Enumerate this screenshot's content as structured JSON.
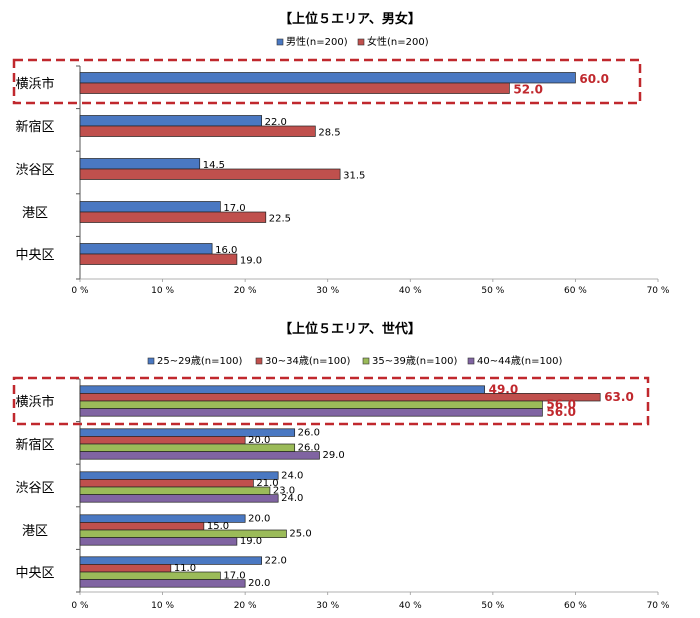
{
  "chart_data": [
    {
      "type": "bar",
      "orientation": "horizontal",
      "title": "【上位５エリア、男女】",
      "categories": [
        "横浜市",
        "新宿区",
        "渋谷区",
        "港区",
        "中央区"
      ],
      "series": [
        {
          "name": "男性(n=200)",
          "values": [
            60.0,
            22.0,
            14.5,
            17.0,
            16.0
          ],
          "labels": [
            "60.0",
            "22.0",
            "14.5",
            "17.0",
            "16.0"
          ]
        },
        {
          "name": "女性(n=200)",
          "values": [
            52.0,
            28.5,
            31.5,
            22.5,
            19.0
          ],
          "labels": [
            "52.0",
            "28.5",
            "31.5",
            "22.5",
            "19.0"
          ]
        }
      ],
      "xlim": [
        0,
        70
      ],
      "ticks": [
        "0 %",
        "10 %",
        "20 %",
        "30 %",
        "40 %",
        "50 %",
        "60 %",
        "70 %"
      ],
      "highlight_category": "横浜市",
      "legend_position": "top"
    },
    {
      "type": "bar",
      "orientation": "horizontal",
      "title": "【上位５エリア、世代】",
      "categories": [
        "横浜市",
        "新宿区",
        "渋谷区",
        "港区",
        "中央区"
      ],
      "series": [
        {
          "name": "25~29歳(n=100)",
          "values": [
            49.0,
            26.0,
            24.0,
            20.0,
            22.0
          ],
          "labels": [
            "49.0",
            "26.0",
            "24.0",
            "20.0",
            "22.0"
          ]
        },
        {
          "name": "30~34歳(n=100)",
          "values": [
            63.0,
            20.0,
            21.0,
            15.0,
            11.0
          ],
          "labels": [
            "63.0",
            "20.0",
            "21.0",
            "15.0",
            "11.0"
          ]
        },
        {
          "name": "35~39歳(n=100)",
          "values": [
            56.0,
            26.0,
            23.0,
            25.0,
            17.0
          ],
          "labels": [
            "56.0",
            "26.0",
            "23.0",
            "25.0",
            "17.0"
          ]
        },
        {
          "name": "40~44歳(n=100)",
          "values": [
            56.0,
            29.0,
            24.0,
            19.0,
            20.0
          ],
          "labels": [
            "56.0",
            "29.0",
            "24.0",
            "19.0",
            "20.0"
          ]
        }
      ],
      "xlim": [
        0,
        70
      ],
      "ticks": [
        "0 %",
        "10 %",
        "20 %",
        "30 %",
        "40 %",
        "50 %",
        "60 %",
        "70 %"
      ],
      "highlight_category": "横浜市",
      "legend_position": "top"
    }
  ],
  "colors": {
    "male": "#4a78c2",
    "female": "#c0504d",
    "age_25_29": "#4a78c2",
    "age_30_34": "#c0504d",
    "age_35_39": "#9bbb59",
    "age_40_44": "#8064a2",
    "highlight": "#c0282d"
  }
}
